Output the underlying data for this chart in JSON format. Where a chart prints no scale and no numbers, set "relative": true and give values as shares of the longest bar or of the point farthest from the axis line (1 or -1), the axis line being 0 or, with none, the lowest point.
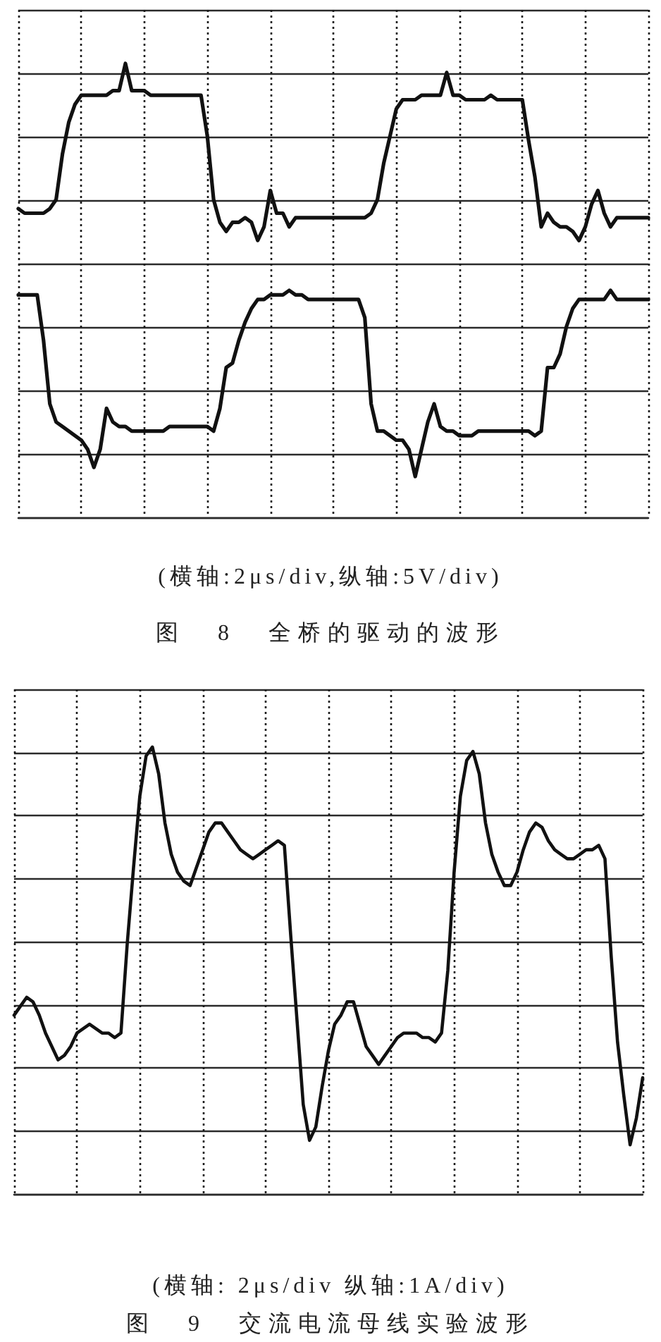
{
  "chart_data": [
    {
      "type": "line",
      "relative": true,
      "title": "图 8 全桥的驱动的波形",
      "annotations": [
        "(横轴:2μs/div,纵轴:5V/div)"
      ],
      "grid": true,
      "marker": "none",
      "line_style": "solid",
      "categories": [
        null,
        null,
        null,
        null,
        null,
        null,
        null,
        null,
        null,
        null,
        null,
        null,
        null,
        null,
        null,
        null,
        null,
        null,
        null,
        null,
        null,
        null,
        null,
        null,
        null,
        null,
        null,
        null,
        null,
        null,
        null,
        null,
        null,
        null,
        null,
        null,
        null,
        null,
        null,
        null,
        null,
        null,
        null,
        null,
        null,
        null,
        null,
        null,
        null,
        null,
        null,
        null,
        null,
        null,
        null,
        null,
        null,
        null,
        null,
        null,
        null,
        null,
        null,
        null,
        null,
        null,
        null,
        null,
        null,
        null,
        null,
        null,
        null,
        null,
        null,
        null,
        null,
        null,
        null,
        null,
        null,
        null,
        null,
        null,
        null,
        null,
        null,
        null,
        null,
        null,
        null,
        null,
        null,
        null,
        null,
        null,
        null,
        null,
        null,
        null,
        null
      ],
      "series": [
        {
          "color": "#111111",
          "values": [
            0.68,
            0.67,
            0.67,
            0.67,
            0.67,
            0.68,
            0.7,
            0.8,
            0.87,
            0.91,
            0.93,
            0.93,
            0.93,
            0.93,
            0.93,
            0.94,
            0.94,
            1,
            0.94,
            0.94,
            0.94,
            0.93,
            0.93,
            0.93,
            0.93,
            0.93,
            0.93,
            0.93,
            0.93,
            0.93,
            0.84,
            0.7,
            0.65,
            0.63,
            0.65,
            0.65,
            0.66,
            0.65,
            0.61,
            0.64,
            0.72,
            0.67,
            0.67,
            0.64,
            0.66,
            0.66,
            0.66,
            0.66,
            0.66,
            0.66,
            0.66,
            0.66,
            0.66,
            0.66,
            0.66,
            0.66,
            0.67,
            0.7,
            0.78,
            0.84,
            0.9,
            0.92,
            0.92,
            0.92,
            0.93,
            0.93,
            0.93,
            0.93,
            0.98,
            0.93,
            0.93,
            0.92,
            0.92,
            0.92,
            0.92,
            0.93,
            0.92,
            0.92,
            0.92,
            0.92,
            0.92,
            0.83,
            0.75,
            0.64,
            0.67,
            0.65,
            0.64,
            0.64,
            0.63,
            0.61,
            0.64,
            0.69,
            0.72,
            0.67,
            0.64,
            0.66,
            0.66,
            0.66,
            0.66,
            0.66,
            0.66
          ]
        },
        {
          "color": "#111111",
          "values": [
            0.49,
            0.49,
            0.49,
            0.49,
            0.39,
            0.25,
            0.21,
            0.2,
            0.19,
            0.18,
            0.17,
            0.15,
            0.11,
            0.15,
            0.24,
            0.21,
            0.2,
            0.2,
            0.19,
            0.19,
            0.19,
            0.19,
            0.19,
            0.19,
            0.2,
            0.2,
            0.2,
            0.2,
            0.2,
            0.2,
            0.2,
            0.19,
            0.24,
            0.33,
            0.34,
            0.39,
            0.43,
            0.46,
            0.48,
            0.48,
            0.49,
            0.49,
            0.49,
            0.5,
            0.49,
            0.49,
            0.48,
            0.48,
            0.48,
            0.48,
            0.48,
            0.48,
            0.48,
            0.48,
            0.48,
            0.44,
            0.25,
            0.19,
            0.19,
            0.18,
            0.17,
            0.17,
            0.15,
            0.09,
            0.15,
            0.21,
            0.25,
            0.2,
            0.19,
            0.19,
            0.18,
            0.18,
            0.18,
            0.19,
            0.19,
            0.19,
            0.19,
            0.19,
            0.19,
            0.19,
            0.19,
            0.19,
            0.18,
            0.19,
            0.33,
            0.33,
            0.36,
            0.42,
            0.46,
            0.48,
            0.48,
            0.48,
            0.48,
            0.48,
            0.5,
            0.48,
            0.48,
            0.48,
            0.48,
            0.48,
            0.48
          ]
        }
      ]
    },
    {
      "type": "line",
      "relative": true,
      "title": "图 9 交流电流母线实验波形",
      "annotations": [
        "(横轴: 2μs/div 纵轴:1A/div)"
      ],
      "grid": true,
      "marker": "none",
      "line_style": "solid",
      "categories": [
        null,
        null,
        null,
        null,
        null,
        null,
        null,
        null,
        null,
        null,
        null,
        null,
        null,
        null,
        null,
        null,
        null,
        null,
        null,
        null,
        null,
        null,
        null,
        null,
        null,
        null,
        null,
        null,
        null,
        null,
        null,
        null,
        null,
        null,
        null,
        null,
        null,
        null,
        null,
        null,
        null,
        null,
        null,
        null,
        null,
        null,
        null,
        null,
        null,
        null,
        null,
        null,
        null,
        null,
        null,
        null,
        null,
        null,
        null,
        null,
        null,
        null,
        null,
        null,
        null,
        null,
        null,
        null,
        null,
        null,
        null,
        null,
        null,
        null,
        null,
        null,
        null,
        null,
        null,
        null,
        null,
        null,
        null,
        null,
        null,
        null,
        null,
        null,
        null,
        null,
        null,
        null,
        null,
        null,
        null,
        null,
        null,
        null,
        null,
        null,
        null
      ],
      "series": [
        {
          "color": "#111111",
          "values": [
            0.4,
            0.42,
            0.44,
            0.43,
            0.4,
            0.36,
            0.33,
            0.3,
            0.31,
            0.33,
            0.36,
            0.37,
            0.38,
            0.37,
            0.36,
            0.36,
            0.35,
            0.36,
            0.56,
            0.73,
            0.89,
            0.98,
            1,
            0.94,
            0.83,
            0.76,
            0.72,
            0.7,
            0.69,
            0.73,
            0.77,
            0.81,
            0.83,
            0.83,
            0.81,
            0.79,
            0.77,
            0.76,
            0.75,
            0.76,
            0.77,
            0.78,
            0.79,
            0.78,
            0.58,
            0.39,
            0.2,
            0.12,
            0.15,
            0.24,
            0.32,
            0.38,
            0.4,
            0.43,
            0.43,
            0.38,
            0.33,
            0.31,
            0.29,
            0.31,
            0.33,
            0.35,
            0.36,
            0.36,
            0.36,
            0.35,
            0.35,
            0.34,
            0.36,
            0.5,
            0.72,
            0.89,
            0.97,
            0.99,
            0.94,
            0.83,
            0.76,
            0.72,
            0.69,
            0.69,
            0.72,
            0.77,
            0.81,
            0.83,
            0.82,
            0.79,
            0.77,
            0.76,
            0.75,
            0.75,
            0.76,
            0.77,
            0.77,
            0.78,
            0.75,
            0.53,
            0.34,
            0.22,
            0.11,
            0.17,
            0.26
          ]
        }
      ]
    }
  ]
}
